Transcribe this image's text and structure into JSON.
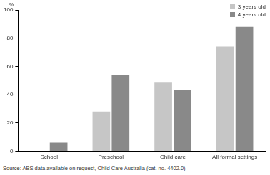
{
  "chart_data": {
    "type": "bar",
    "y_label": "%",
    "categories": [
      "School",
      "Preschool",
      "Child care",
      "All formal settings"
    ],
    "series": [
      {
        "name": "3 years old",
        "color": "#c6c6c6",
        "values": [
          0,
          28,
          49,
          74
        ]
      },
      {
        "name": "4 years old",
        "color": "#898989",
        "values": [
          6,
          54,
          43,
          88
        ]
      }
    ],
    "ylim": [
      0,
      100
    ],
    "yticks": [
      0,
      20,
      40,
      60,
      80,
      100
    ],
    "grid": true,
    "legend": "top-right",
    "source": "Source: ABS data available on request, Child Care Australia (cat. no. 4402.0)"
  }
}
